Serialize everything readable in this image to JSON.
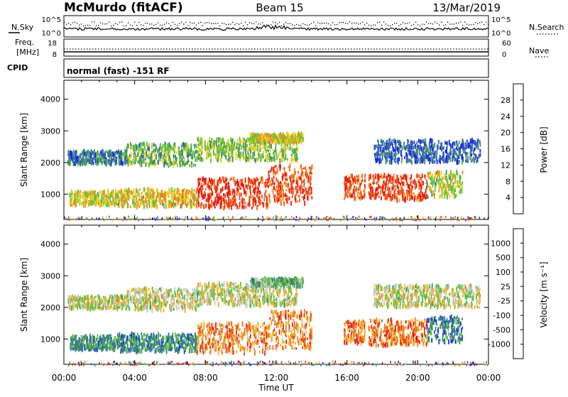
{
  "header": {
    "station": "McMurdo (fitACF)",
    "beam": "Beam 15",
    "date": "13/Mar/2019"
  },
  "top_strip": {
    "nsky_label": "N.Sky",
    "nsky_ticks": [
      "10^5",
      "10^0"
    ],
    "nsearch_label": "N.Search",
    "nsearch_ticks": [
      "10^5",
      "10^0"
    ],
    "freq_label": "Freq.",
    "freq_unit": "[MHz]",
    "freq_ticks": [
      "18",
      "8"
    ],
    "nave_label": "Nave",
    "nave_ticks": [
      "60",
      "0"
    ],
    "cpid_label": "CPID",
    "cpid_value": "normal (fast) -151 RF"
  },
  "chart_data": [
    {
      "type": "heatmap",
      "name": "power",
      "ylabel": "Slant Range [km]",
      "ylim": [
        200,
        4600
      ],
      "xlim": [
        0,
        24
      ],
      "yticks": [
        "1000",
        "2000",
        "3000",
        "4000"
      ],
      "colorbar_label": "Power [dB]",
      "colorbar_ticks": [
        "28",
        "24",
        "20",
        "16",
        "12",
        "8",
        "4"
      ],
      "colors": [
        "#1a1aff",
        "#2e5fb0",
        "#3f8f6a",
        "#64c13a",
        "#e8d020",
        "#f09020",
        "#f05a10",
        "#e81c10"
      ],
      "regions": [
        {
          "t0": 0.3,
          "t1": 3.0,
          "r0": 650,
          "r1": 1100,
          "level": 0.55
        },
        {
          "t0": 3.0,
          "t1": 7.5,
          "r0": 600,
          "r1": 1150,
          "level": 0.6
        },
        {
          "t0": 7.5,
          "t1": 11.5,
          "r0": 550,
          "r1": 1500,
          "level": 0.92
        },
        {
          "t0": 11.5,
          "t1": 14.0,
          "r0": 700,
          "r1": 1900,
          "level": 0.85
        },
        {
          "t0": 15.8,
          "t1": 17.0,
          "r0": 850,
          "r1": 1600,
          "level": 0.85
        },
        {
          "t0": 17.2,
          "t1": 20.5,
          "r0": 800,
          "r1": 1600,
          "level": 0.88
        },
        {
          "t0": 20.5,
          "t1": 22.5,
          "r0": 900,
          "r1": 1700,
          "level": 0.5
        },
        {
          "t0": 0.2,
          "t1": 3.5,
          "r0": 1950,
          "r1": 2350,
          "level": 0.25
        },
        {
          "t0": 3.5,
          "t1": 7.5,
          "r0": 1900,
          "r1": 2600,
          "level": 0.4
        },
        {
          "t0": 7.5,
          "t1": 13.2,
          "r0": 2050,
          "r1": 2750,
          "level": 0.45
        },
        {
          "t0": 10.5,
          "t1": 13.5,
          "r0": 2650,
          "r1": 2900,
          "level": 0.55
        },
        {
          "t0": 17.5,
          "t1": 23.5,
          "r0": 2000,
          "r1": 2700,
          "level": 0.2
        }
      ]
    },
    {
      "type": "heatmap",
      "name": "velocity",
      "xlabel": "Time UT",
      "ylabel": "Slant Range [km]",
      "ylim": [
        200,
        4600
      ],
      "xlim": [
        0,
        24
      ],
      "yticks": [
        "1000",
        "2000",
        "3000",
        "4000"
      ],
      "xticks": [
        "00:00",
        "04:00",
        "08:00",
        "12:00",
        "16:00",
        "20:00",
        "00:00"
      ],
      "colorbar_label": "Velocity [m s⁻¹]",
      "colorbar_ticks": [
        "1000",
        "500",
        "100",
        "25",
        "-25",
        "-100",
        "-500",
        "-1000"
      ],
      "colors": [
        "#1a3cc8",
        "#2e6ab0",
        "#3e8a5a",
        "#5cc040",
        "#c8c8c8",
        "#f0b020",
        "#f07820",
        "#e83010",
        "#e01010"
      ],
      "regions": [
        {
          "t0": 0.3,
          "t1": 3.0,
          "r0": 650,
          "r1": 1100,
          "level": 0.28
        },
        {
          "t0": 3.0,
          "t1": 7.5,
          "r0": 600,
          "r1": 1150,
          "level": 0.25
        },
        {
          "t0": 7.5,
          "t1": 11.5,
          "r0": 550,
          "r1": 1500,
          "level": 0.7
        },
        {
          "t0": 11.5,
          "t1": 14.0,
          "r0": 700,
          "r1": 1900,
          "level": 0.72
        },
        {
          "t0": 15.8,
          "t1": 17.0,
          "r0": 850,
          "r1": 1600,
          "level": 0.74
        },
        {
          "t0": 17.2,
          "t1": 20.5,
          "r0": 800,
          "r1": 1600,
          "level": 0.74
        },
        {
          "t0": 20.5,
          "t1": 22.5,
          "r0": 900,
          "r1": 1700,
          "level": 0.2
        },
        {
          "t0": 0.2,
          "t1": 3.5,
          "r0": 1950,
          "r1": 2350,
          "level": 0.5
        },
        {
          "t0": 3.5,
          "t1": 7.5,
          "r0": 1900,
          "r1": 2600,
          "level": 0.5
        },
        {
          "t0": 7.5,
          "t1": 13.2,
          "r0": 2050,
          "r1": 2750,
          "level": 0.5
        },
        {
          "t0": 10.5,
          "t1": 13.5,
          "r0": 2650,
          "r1": 2900,
          "level": 0.38
        },
        {
          "t0": 17.5,
          "t1": 23.5,
          "r0": 2000,
          "r1": 2700,
          "level": 0.5
        }
      ]
    }
  ]
}
